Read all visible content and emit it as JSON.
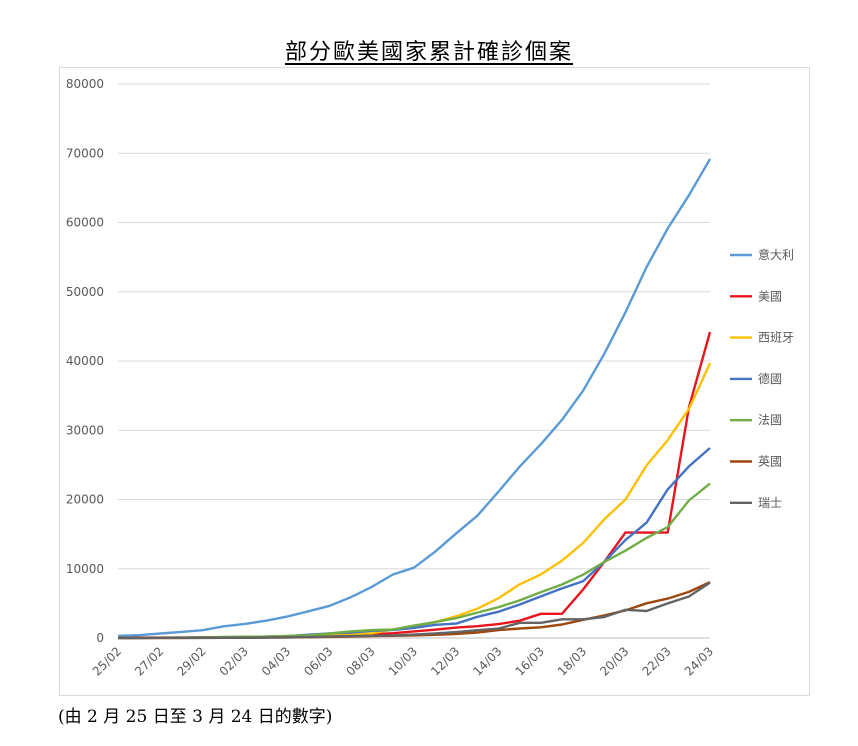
{
  "title": "部分歐美國家累計確診個案",
  "footnote": "(由 2 月 25 日至 3 月 24 日的數字)",
  "chart_data": {
    "type": "line",
    "title": "部分歐美國家累計確診個案",
    "ylim": [
      0,
      80000
    ],
    "yticks": [
      0,
      10000,
      20000,
      30000,
      40000,
      50000,
      60000,
      70000,
      80000
    ],
    "grid": true,
    "legend_position": "right",
    "x": [
      "25/02",
      "26/02",
      "27/02",
      "28/02",
      "29/02",
      "01/03",
      "02/03",
      "03/03",
      "04/03",
      "05/03",
      "06/03",
      "07/03",
      "08/03",
      "09/03",
      "10/03",
      "11/03",
      "12/03",
      "13/03",
      "14/03",
      "15/03",
      "16/03",
      "17/03",
      "18/03",
      "19/03",
      "20/03",
      "21/03",
      "22/03",
      "23/03",
      "24/03"
    ],
    "xtick_labels": [
      "25/02",
      "27/02",
      "29/02",
      "02/03",
      "04/03",
      "06/03",
      "08/03",
      "10/03",
      "12/03",
      "14/03",
      "16/03",
      "18/03",
      "20/03",
      "22/03",
      "24/03"
    ],
    "series": [
      {
        "name": "意大利",
        "color": "#5b9bd5",
        "values": [
          322,
          400,
          650,
          888,
          1128,
          1694,
          2036,
          2502,
          3089,
          3858,
          4636,
          5883,
          7375,
          9172,
          10149,
          12462,
          15113,
          17660,
          21157,
          24747,
          27980,
          31506,
          35713,
          41035,
          47021,
          53578,
          59138,
          63927,
          69176
        ]
      },
      {
        "name": "美國",
        "color": "#e8141e",
        "values": [
          50,
          55,
          60,
          62,
          68,
          72,
          90,
          110,
          150,
          220,
          320,
          420,
          540,
          700,
          960,
          1200,
          1500,
          1700,
          2000,
          2500,
          3500,
          3500,
          7000,
          11000,
          15219,
          15219,
          15219,
          33276,
          44183
        ]
      },
      {
        "name": "西班牙",
        "color": "#ffc000",
        "values": [
          3,
          9,
          13,
          30,
          45,
          84,
          120,
          165,
          228,
          282,
          401,
          525,
          674,
          1231,
          1695,
          2277,
          3146,
          4231,
          5753,
          7753,
          9191,
          11178,
          13716,
          17147,
          19980,
          24926,
          28572,
          33089,
          39673
        ]
      },
      {
        "name": "德國",
        "color": "#4472c4",
        "values": [
          16,
          18,
          26,
          48,
          79,
          130,
          159,
          196,
          262,
          482,
          670,
          799,
          1040,
          1176,
          1457,
          1908,
          2078,
          3062,
          3795,
          4838,
          6012,
          7156,
          8198,
          10999,
          14138,
          16662,
          21463,
          24774,
          27436
        ]
      },
      {
        "name": "法國",
        "color": "#70ad47",
        "values": [
          14,
          18,
          38,
          57,
          100,
          130,
          191,
          204,
          288,
          380,
          656,
          957,
          1134,
          1217,
          1792,
          2289,
          2876,
          3661,
          4469,
          5423,
          6633,
          7730,
          9134,
          10995,
          12612,
          14459,
          16018,
          19856,
          22302
        ]
      },
      {
        "name": "英國",
        "color": "#9e480e",
        "values": [
          13,
          13,
          15,
          20,
          23,
          36,
          40,
          51,
          85,
          115,
          163,
          206,
          273,
          321,
          373,
          456,
          590,
          798,
          1140,
          1372,
          1543,
          1950,
          2626,
          3269,
          3983,
          5018,
          5683,
          6650,
          8077
        ]
      },
      {
        "name": "瑞士",
        "color": "#636363",
        "values": [
          1,
          1,
          8,
          8,
          15,
          24,
          30,
          56,
          90,
          114,
          214,
          268,
          337,
          374,
          491,
          645,
          858,
          1125,
          1359,
          2200,
          2200,
          2700,
          2700,
          3028,
          4075,
          3900,
          5000,
          6000,
          8000
        ]
      }
    ]
  }
}
